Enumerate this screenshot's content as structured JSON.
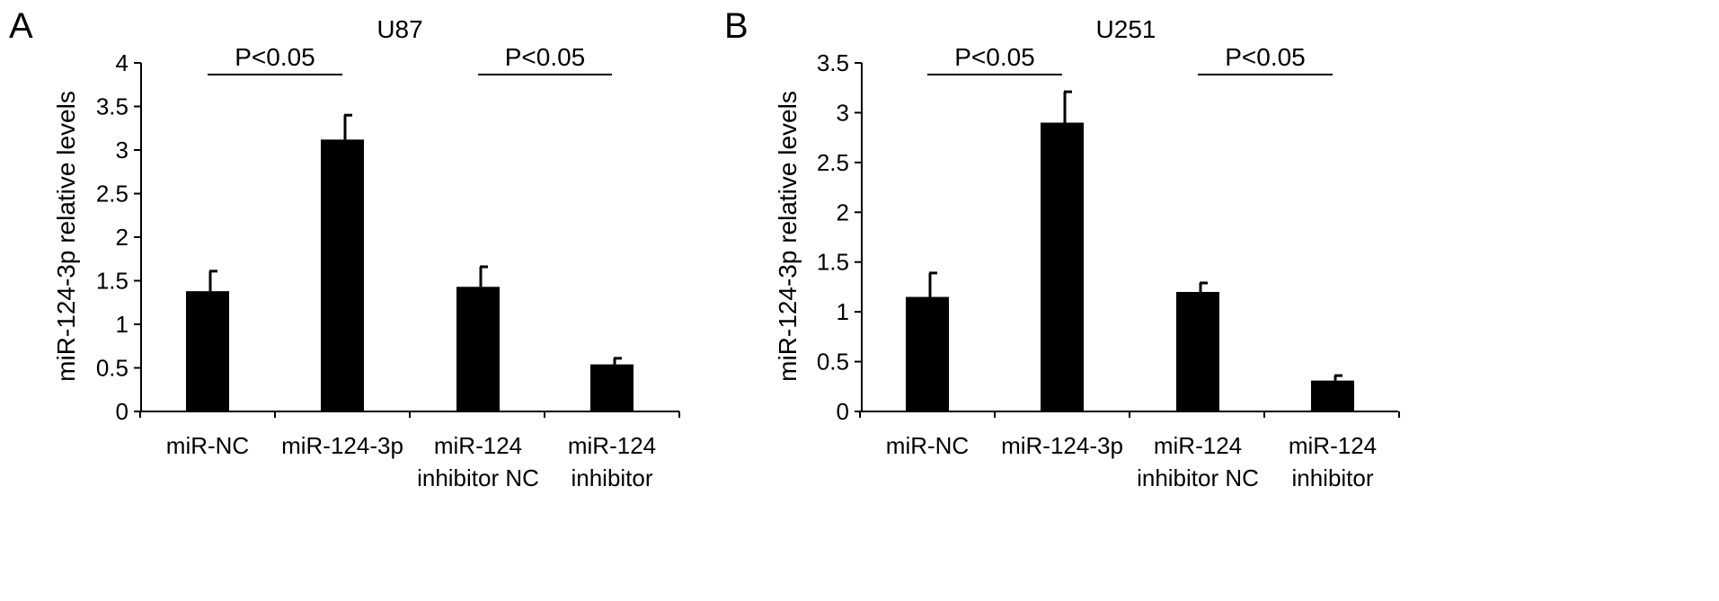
{
  "panels": [
    {
      "letter": "A",
      "title": "U87",
      "ylabel": "miR-124-3p relative levels",
      "ticks": [
        "0",
        "0.5",
        "1",
        "1.5",
        "2",
        "2.5",
        "3",
        "3.5",
        "4"
      ],
      "significance": [
        {
          "text": "P<0.05",
          "from": 0,
          "to": 1
        },
        {
          "text": "P<0.05",
          "from": 2,
          "to": 3
        }
      ]
    },
    {
      "letter": "B",
      "title": "U251",
      "ylabel": "miR-124-3p relative levels",
      "ticks": [
        "0",
        "0.5",
        "1",
        "1.5",
        "2",
        "2.5",
        "3",
        "3.5"
      ],
      "significance": [
        {
          "text": "P<0.05",
          "from": 0,
          "to": 1
        },
        {
          "text": "P<0.05",
          "from": 2,
          "to": 3
        }
      ]
    }
  ],
  "chart_data": [
    {
      "type": "bar",
      "title": "U87",
      "xlabel": "",
      "ylabel": "miR-124-3p relative levels",
      "categories": [
        [
          "miR-NC"
        ],
        [
          "miR-124-3p"
        ],
        [
          "miR-124",
          "inhibitor NC"
        ],
        [
          "miR-124",
          "inhibitor"
        ]
      ],
      "values": [
        1.38,
        3.12,
        1.43,
        0.54
      ],
      "errors": [
        0.23,
        0.28,
        0.23,
        0.07
      ],
      "ylim": [
        0,
        4
      ],
      "bar_color": "#000000",
      "grid": false
    },
    {
      "type": "bar",
      "title": "U251",
      "xlabel": "",
      "ylabel": "miR-124-3p relative levels",
      "categories": [
        [
          "miR-NC"
        ],
        [
          "miR-124-3p"
        ],
        [
          "miR-124",
          "inhibitor NC"
        ],
        [
          "miR-124",
          "inhibitor"
        ]
      ],
      "values": [
        1.15,
        2.9,
        1.2,
        0.31
      ],
      "errors": [
        0.24,
        0.31,
        0.09,
        0.05
      ],
      "ylim": [
        0,
        3.5
      ],
      "bar_color": "#000000",
      "grid": false
    }
  ]
}
